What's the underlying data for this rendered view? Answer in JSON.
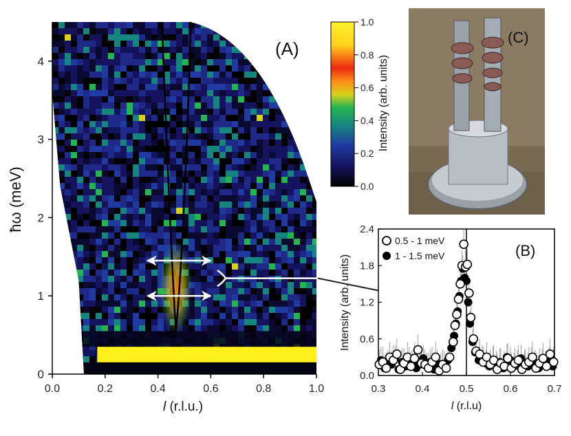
{
  "chart_data": [
    {
      "panel_label": "(A)",
      "type": "heatmap",
      "xlabel": "l (r.l.u.)",
      "ylabel": "ħω (meV)",
      "xlim": [
        0.0,
        1.0
      ],
      "ylim": [
        0,
        4.5
      ],
      "xticks": [
        "0.0",
        "0.2",
        "0.4",
        "0.6",
        "0.8",
        "1.0"
      ],
      "yticks": [
        "0",
        "1",
        "2",
        "3",
        "4"
      ],
      "colorbar": {
        "label": "Intensity (arb. units)",
        "range": [
          0.0,
          1.0
        ],
        "ticks": [
          "0.0",
          "0.2",
          "0.4",
          "0.6",
          "0.8",
          "1.0"
        ],
        "colors": [
          "#000000",
          "#16135e",
          "#1f3aa0",
          "#17857f",
          "#23b650",
          "#d8d11a",
          "#ff8c18",
          "#ee2a10",
          "#ffd21c",
          "#fff22a"
        ]
      },
      "features": {
        "dispersion_vertex": {
          "l": 0.468,
          "E": 0.55
        },
        "dispersion_top": {
          "E": 4.5,
          "l_left": 0.415,
          "l_right": 0.525
        },
        "elastic_band": {
          "l_from": 0.17,
          "l_to": 1.0,
          "E_from": 0.15,
          "E_to": 0.35
        },
        "resolution_arrows": [
          {
            "E": 1.0,
            "l_from": 0.36,
            "l_to": 0.6
          },
          {
            "E": 1.45,
            "l_from": 0.36,
            "l_to": 0.6
          }
        ],
        "bracket_E_range": [
          1.0,
          1.45
        ]
      }
    },
    {
      "panel_label": "(B)",
      "type": "scatter",
      "xlabel": "l (r.l.u)",
      "ylabel": "Intensity (arb. units)",
      "xlim": [
        0.3,
        0.7
      ],
      "ylim": [
        0.0,
        2.4
      ],
      "xticks": [
        "0.3",
        "0.4",
        "0.5",
        "0.6",
        "0.7"
      ],
      "yticks": [
        "0.0",
        "0.6",
        "1.2",
        "1.8",
        "2.4"
      ],
      "vline_x": 0.5,
      "series": [
        {
          "name": "0.5 - 1 meV",
          "marker": "open circle",
          "x": [
            0.302,
            0.31,
            0.318,
            0.326,
            0.334,
            0.342,
            0.35,
            0.358,
            0.366,
            0.374,
            0.382,
            0.39,
            0.398,
            0.406,
            0.414,
            0.422,
            0.43,
            0.438,
            0.446,
            0.454,
            0.462,
            0.47,
            0.474,
            0.478,
            0.482,
            0.486,
            0.49,
            0.494,
            0.498,
            0.502,
            0.506,
            0.51,
            0.516,
            0.522,
            0.53,
            0.538,
            0.546,
            0.554,
            0.562,
            0.57,
            0.578,
            0.586,
            0.594,
            0.602,
            0.61,
            0.618,
            0.626,
            0.634,
            0.642,
            0.65,
            0.658,
            0.666,
            0.674,
            0.682,
            0.69,
            0.698
          ],
          "y": [
            0.18,
            0.22,
            0.12,
            0.3,
            0.25,
            0.35,
            0.1,
            0.2,
            0.3,
            0.15,
            0.28,
            0.42,
            0.2,
            0.18,
            0.12,
            0.22,
            0.3,
            0.08,
            0.18,
            0.12,
            0.3,
            0.55,
            0.82,
            1.0,
            1.25,
            1.5,
            1.8,
            2.15,
            1.78,
            1.82,
            1.35,
            0.95,
            0.6,
            0.4,
            0.35,
            0.22,
            0.3,
            0.18,
            0.25,
            0.1,
            0.2,
            0.15,
            0.28,
            0.12,
            0.2,
            0.25,
            0.1,
            0.18,
            0.22,
            0.3,
            0.12,
            0.2,
            0.28,
            0.15,
            0.35,
            0.22
          ]
        },
        {
          "name": "1 - 1.5 meV",
          "marker": "filled circle",
          "x": [
            0.306,
            0.314,
            0.322,
            0.33,
            0.338,
            0.346,
            0.354,
            0.362,
            0.37,
            0.378,
            0.386,
            0.394,
            0.402,
            0.41,
            0.418,
            0.426,
            0.434,
            0.442,
            0.45,
            0.458,
            0.466,
            0.472,
            0.476,
            0.48,
            0.484,
            0.488,
            0.492,
            0.496,
            0.5,
            0.504,
            0.508,
            0.514,
            0.52,
            0.528,
            0.536,
            0.544,
            0.552,
            0.56,
            0.568,
            0.576,
            0.584,
            0.592,
            0.6,
            0.608,
            0.616,
            0.624,
            0.632,
            0.64,
            0.648,
            0.656,
            0.664,
            0.672,
            0.68,
            0.688,
            0.696
          ],
          "y": [
            0.25,
            0.12,
            0.2,
            0.18,
            0.28,
            0.1,
            0.22,
            0.15,
            0.25,
            0.2,
            0.12,
            0.18,
            0.28,
            0.15,
            0.22,
            0.1,
            0.2,
            0.15,
            0.18,
            0.25,
            0.45,
            0.65,
            0.85,
            1.05,
            1.3,
            1.55,
            1.75,
            1.6,
            1.55,
            1.2,
            0.85,
            0.55,
            0.38,
            0.25,
            0.28,
            0.2,
            0.15,
            0.25,
            0.18,
            0.22,
            0.12,
            0.3,
            0.25,
            0.15,
            0.2,
            0.28,
            0.18,
            0.15,
            0.25,
            0.2,
            0.12,
            0.22,
            0.18,
            0.25,
            0.15
          ]
        }
      ]
    }
  ],
  "photo": {
    "label": "(C)"
  },
  "text": {
    "panel_a": "(A)",
    "panel_b": "(B)",
    "panel_c": "(C)",
    "ylabel_a": "ħω (meV)",
    "xlabel_a_italic": "l",
    "xlabel_a_rest": " (r.l.u.)",
    "xlabel_b_italic": "l",
    "xlabel_b_rest": " (r.l.u)",
    "ylabel_b": "Intensity (arb. units)",
    "colorbar_label": "Intensity (arb. units)",
    "legend_open": "0.5 - 1 meV",
    "legend_filled": "1 - 1.5 meV"
  },
  "colors": {
    "axis": "#000000",
    "band": "#ffef1a",
    "arrow": "#ffffff"
  }
}
